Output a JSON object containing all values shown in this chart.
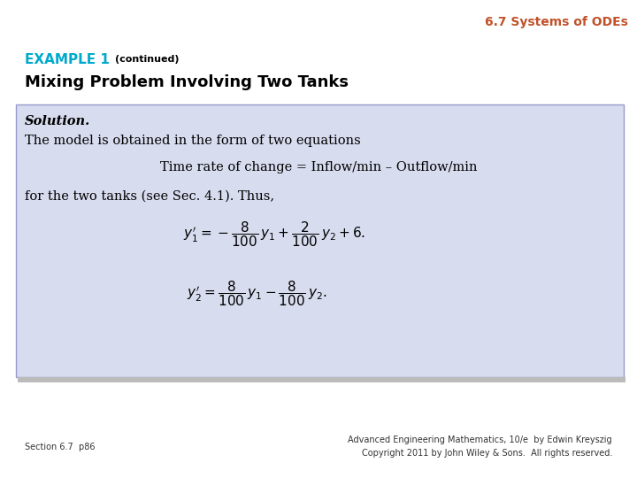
{
  "header_text": "6.7 Systems of ODEs",
  "header_color": "#C0522A",
  "example_label": "EXAMPLE 1",
  "example_label_color": "#00AACC",
  "continued_text": "(continued)",
  "subtitle": "Mixing Problem Involving Two Tanks",
  "bg_color": "#FFFFFF",
  "box_bg_color": "#D8DCEF",
  "box_edge_color": "#9999CC",
  "solution_italic": "Solution.",
  "line1": "The model is obtained in the form of two equations",
  "line2": "Time rate of change = Inflow/min – Outflow/min",
  "line3": "for the two tanks (see Sec. 4.1). Thus,",
  "footer_left": "Section 6.7  p86",
  "footer_right_line1": "Advanced Engineering Mathematics, 10/e  by Edwin Kreyszig",
  "footer_right_line2": "Copyright 2011 by John Wiley & Sons.  All rights reserved.",
  "eq1": "$y_1' = -\\dfrac{8}{100}\\,y_1 + \\dfrac{2}{100}\\,y_2 + 6.$",
  "eq2": "$y_2' = \\dfrac{8}{100}\\,y_1 - \\dfrac{8}{100}\\,y_2.$",
  "example_label_fontsize": 11,
  "continued_fontsize": 8,
  "subtitle_fontsize": 13,
  "header_fontsize": 10,
  "body_fontsize": 10.5,
  "eq_fontsize": 11,
  "footer_fontsize": 7
}
